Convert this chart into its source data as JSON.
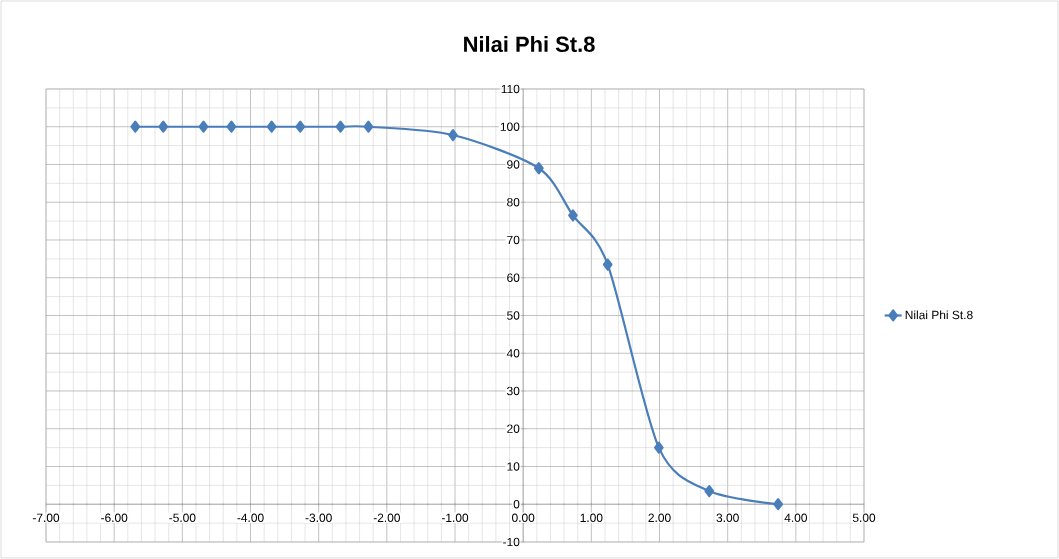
{
  "chart_data": {
    "type": "line",
    "title": "Nilai Phi St.8",
    "x": [
      -5.69,
      -5.28,
      -4.69,
      -4.28,
      -3.69,
      -3.27,
      -2.68,
      -2.27,
      -1.03,
      0.23,
      0.73,
      1.24,
      1.99,
      2.73,
      3.74
    ],
    "series": [
      {
        "name": "Nilai Phi St.8",
        "color": "#4a7ebb",
        "values": [
          100,
          100,
          100,
          100,
          100,
          100,
          100,
          100,
          97.8,
          89,
          76.5,
          63.5,
          15,
          3.5,
          0
        ]
      }
    ],
    "xlim": [
      -7,
      5
    ],
    "ylim": [
      -10,
      110
    ],
    "xticks": [
      {
        "value": -7,
        "label": "-7.00"
      },
      {
        "value": -6,
        "label": "-6.00"
      },
      {
        "value": -5,
        "label": "-5.00"
      },
      {
        "value": -4,
        "label": "-4.00"
      },
      {
        "value": -3,
        "label": "-3.00"
      },
      {
        "value": -2,
        "label": "-2.00"
      },
      {
        "value": -1,
        "label": "-1.00"
      },
      {
        "value": 0,
        "label": "0.00"
      },
      {
        "value": 1,
        "label": "1.00"
      },
      {
        "value": 2,
        "label": "2.00"
      },
      {
        "value": 3,
        "label": "3.00"
      },
      {
        "value": 4,
        "label": "4.00"
      },
      {
        "value": 5,
        "label": "5.00"
      }
    ],
    "yticks": [
      -10,
      0,
      10,
      20,
      30,
      40,
      50,
      60,
      70,
      80,
      90,
      100,
      110
    ],
    "grid": true,
    "legend": "right",
    "marker": "diamond",
    "line_style": "solid"
  }
}
